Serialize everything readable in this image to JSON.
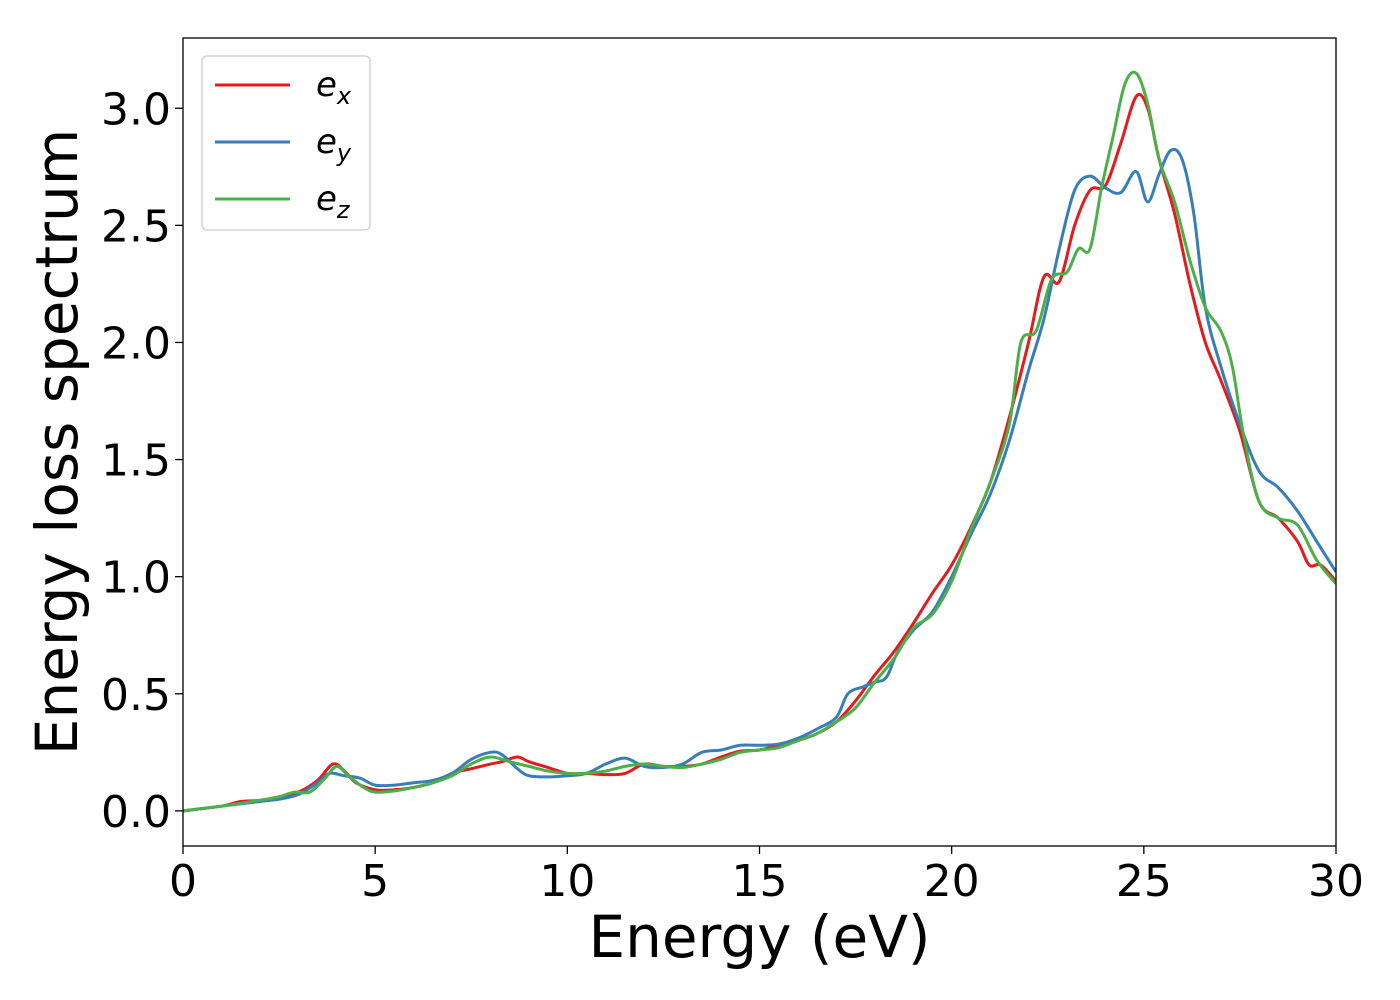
{
  "chart_data": {
    "type": "line",
    "xlabel": "Energy (eV)",
    "ylabel": "Energy loss spectrum",
    "xlim": [
      0,
      30
    ],
    "ylim": [
      -0.15,
      3.3
    ],
    "xticks": [
      0,
      5,
      10,
      15,
      20,
      25,
      30
    ],
    "xtick_labels": [
      "0",
      "5",
      "10",
      "15",
      "20",
      "25",
      "30"
    ],
    "yticks": [
      0.0,
      0.5,
      1.0,
      1.5,
      2.0,
      2.5,
      3.0
    ],
    "ytick_labels": [
      "0.0",
      "0.5",
      "1.0",
      "1.5",
      "2.0",
      "2.5",
      "3.0"
    ],
    "grid": false,
    "legend_position": "top-left",
    "series": [
      {
        "name": "e",
        "subscript": "x",
        "color": "#e41a1c",
        "points": [
          [
            0,
            0.0
          ],
          [
            1,
            0.02
          ],
          [
            1.5,
            0.04
          ],
          [
            2,
            0.045
          ],
          [
            2.5,
            0.06
          ],
          [
            3,
            0.08
          ],
          [
            3.5,
            0.13
          ],
          [
            3.9,
            0.2
          ],
          [
            4.2,
            0.17
          ],
          [
            4.5,
            0.12
          ],
          [
            5,
            0.09
          ],
          [
            5.5,
            0.09
          ],
          [
            6,
            0.1
          ],
          [
            6.5,
            0.12
          ],
          [
            7,
            0.16
          ],
          [
            7.5,
            0.18
          ],
          [
            8,
            0.2
          ],
          [
            8.3,
            0.21
          ],
          [
            8.7,
            0.23
          ],
          [
            9,
            0.21
          ],
          [
            9.5,
            0.185
          ],
          [
            10,
            0.16
          ],
          [
            10.5,
            0.16
          ],
          [
            11,
            0.155
          ],
          [
            11.5,
            0.16
          ],
          [
            12,
            0.2
          ],
          [
            12.5,
            0.19
          ],
          [
            13,
            0.19
          ],
          [
            13.5,
            0.2
          ],
          [
            14,
            0.23
          ],
          [
            14.5,
            0.255
          ],
          [
            15,
            0.26
          ],
          [
            15.5,
            0.28
          ],
          [
            16,
            0.3
          ],
          [
            16.5,
            0.33
          ],
          [
            17,
            0.38
          ],
          [
            17.5,
            0.47
          ],
          [
            18,
            0.58
          ],
          [
            18.5,
            0.68
          ],
          [
            19,
            0.8
          ],
          [
            19.5,
            0.93
          ],
          [
            20,
            1.05
          ],
          [
            20.5,
            1.21
          ],
          [
            21,
            1.4
          ],
          [
            21.5,
            1.68
          ],
          [
            22,
            2.0
          ],
          [
            22.4,
            2.28
          ],
          [
            22.8,
            2.26
          ],
          [
            23.2,
            2.5
          ],
          [
            23.6,
            2.65
          ],
          [
            24,
            2.67
          ],
          [
            24.4,
            2.85
          ],
          [
            24.8,
            3.05
          ],
          [
            25.1,
            3.0
          ],
          [
            25.4,
            2.78
          ],
          [
            25.8,
            2.55
          ],
          [
            26.2,
            2.25
          ],
          [
            26.6,
            2.0
          ],
          [
            27,
            1.84
          ],
          [
            27.5,
            1.62
          ],
          [
            28,
            1.32
          ],
          [
            28.5,
            1.25
          ],
          [
            29,
            1.15
          ],
          [
            29.3,
            1.05
          ],
          [
            29.6,
            1.05
          ],
          [
            30,
            0.98
          ]
        ]
      },
      {
        "name": "e",
        "subscript": "y",
        "color": "#377eb8",
        "points": [
          [
            0,
            0.0
          ],
          [
            1,
            0.02
          ],
          [
            2,
            0.04
          ],
          [
            2.5,
            0.05
          ],
          [
            3,
            0.07
          ],
          [
            3.5,
            0.12
          ],
          [
            3.8,
            0.16
          ],
          [
            4.2,
            0.15
          ],
          [
            4.6,
            0.14
          ],
          [
            5,
            0.11
          ],
          [
            5.5,
            0.11
          ],
          [
            6,
            0.12
          ],
          [
            6.5,
            0.13
          ],
          [
            7,
            0.16
          ],
          [
            7.5,
            0.22
          ],
          [
            8,
            0.25
          ],
          [
            8.3,
            0.24
          ],
          [
            8.7,
            0.18
          ],
          [
            9,
            0.15
          ],
          [
            9.5,
            0.145
          ],
          [
            10,
            0.15
          ],
          [
            10.5,
            0.16
          ],
          [
            11,
            0.2
          ],
          [
            11.5,
            0.225
          ],
          [
            12,
            0.19
          ],
          [
            12.5,
            0.185
          ],
          [
            13,
            0.2
          ],
          [
            13.5,
            0.25
          ],
          [
            14,
            0.26
          ],
          [
            14.5,
            0.28
          ],
          [
            15,
            0.28
          ],
          [
            15.5,
            0.285
          ],
          [
            16,
            0.31
          ],
          [
            16.5,
            0.35
          ],
          [
            17,
            0.4
          ],
          [
            17.3,
            0.5
          ],
          [
            17.7,
            0.53
          ],
          [
            18,
            0.55
          ],
          [
            18.3,
            0.57
          ],
          [
            18.6,
            0.68
          ],
          [
            19,
            0.77
          ],
          [
            19.5,
            0.85
          ],
          [
            20,
            1.0
          ],
          [
            20.5,
            1.18
          ],
          [
            21,
            1.35
          ],
          [
            21.5,
            1.58
          ],
          [
            22,
            1.88
          ],
          [
            22.4,
            2.1
          ],
          [
            22.8,
            2.4
          ],
          [
            23.2,
            2.65
          ],
          [
            23.6,
            2.71
          ],
          [
            24,
            2.66
          ],
          [
            24.4,
            2.64
          ],
          [
            24.8,
            2.73
          ],
          [
            25.1,
            2.6
          ],
          [
            25.4,
            2.72
          ],
          [
            25.7,
            2.82
          ],
          [
            26,
            2.78
          ],
          [
            26.3,
            2.55
          ],
          [
            26.6,
            2.15
          ],
          [
            27,
            1.9
          ],
          [
            27.5,
            1.65
          ],
          [
            28,
            1.45
          ],
          [
            28.5,
            1.38
          ],
          [
            29,
            1.28
          ],
          [
            29.5,
            1.15
          ],
          [
            30,
            1.02
          ]
        ]
      },
      {
        "name": "e",
        "subscript": "z",
        "color": "#4daf4a",
        "points": [
          [
            0,
            0.0
          ],
          [
            1,
            0.02
          ],
          [
            2,
            0.045
          ],
          [
            2.5,
            0.06
          ],
          [
            2.9,
            0.08
          ],
          [
            3.3,
            0.08
          ],
          [
            3.7,
            0.14
          ],
          [
            4,
            0.19
          ],
          [
            4.3,
            0.15
          ],
          [
            4.7,
            0.1
          ],
          [
            5,
            0.08
          ],
          [
            5.5,
            0.085
          ],
          [
            6,
            0.1
          ],
          [
            6.5,
            0.12
          ],
          [
            7,
            0.15
          ],
          [
            7.5,
            0.2
          ],
          [
            8,
            0.23
          ],
          [
            8.5,
            0.21
          ],
          [
            9,
            0.19
          ],
          [
            9.5,
            0.17
          ],
          [
            10,
            0.16
          ],
          [
            10.5,
            0.16
          ],
          [
            11,
            0.17
          ],
          [
            11.5,
            0.19
          ],
          [
            12,
            0.2
          ],
          [
            12.5,
            0.19
          ],
          [
            13,
            0.185
          ],
          [
            13.5,
            0.2
          ],
          [
            14,
            0.22
          ],
          [
            14.5,
            0.25
          ],
          [
            15,
            0.26
          ],
          [
            15.5,
            0.27
          ],
          [
            16,
            0.3
          ],
          [
            16.5,
            0.33
          ],
          [
            17,
            0.38
          ],
          [
            17.5,
            0.44
          ],
          [
            18,
            0.55
          ],
          [
            18.5,
            0.65
          ],
          [
            19,
            0.78
          ],
          [
            19.5,
            0.84
          ],
          [
            20,
            0.98
          ],
          [
            20.5,
            1.2
          ],
          [
            21,
            1.4
          ],
          [
            21.5,
            1.65
          ],
          [
            21.8,
            2.0
          ],
          [
            22.2,
            2.05
          ],
          [
            22.6,
            2.27
          ],
          [
            23,
            2.3
          ],
          [
            23.3,
            2.4
          ],
          [
            23.6,
            2.4
          ],
          [
            23.9,
            2.66
          ],
          [
            24.2,
            2.88
          ],
          [
            24.5,
            3.1
          ],
          [
            24.8,
            3.15
          ],
          [
            25.1,
            3.02
          ],
          [
            25.4,
            2.78
          ],
          [
            25.8,
            2.6
          ],
          [
            26.2,
            2.35
          ],
          [
            26.6,
            2.15
          ],
          [
            27,
            2.05
          ],
          [
            27.3,
            1.9
          ],
          [
            27.6,
            1.6
          ],
          [
            28,
            1.32
          ],
          [
            28.5,
            1.25
          ],
          [
            29,
            1.22
          ],
          [
            29.5,
            1.07
          ],
          [
            30,
            0.97
          ]
        ]
      }
    ]
  }
}
